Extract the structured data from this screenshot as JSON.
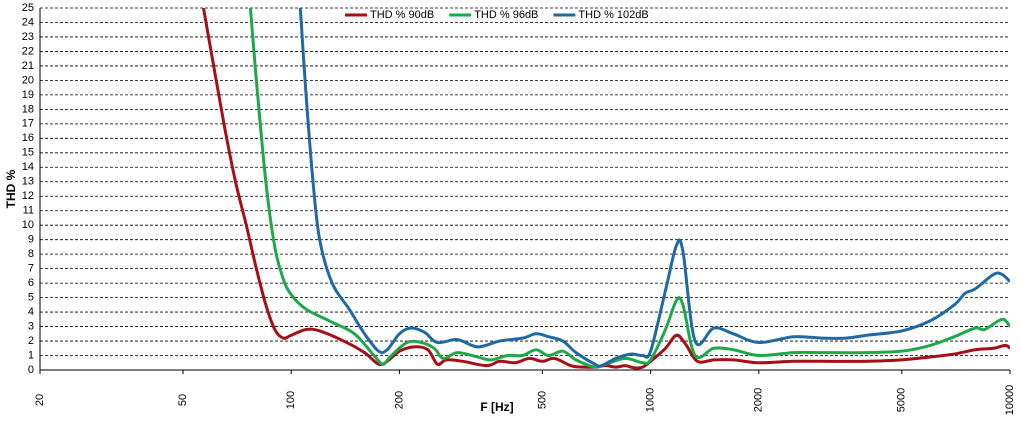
{
  "chart_data": {
    "type": "line",
    "x_label": "F [Hz]",
    "y_label": "THD %",
    "log_x": true,
    "grid": true,
    "xlim": [
      20,
      10000
    ],
    "ylim": [
      0,
      25
    ],
    "xticks": [
      20,
      50,
      100,
      200,
      500,
      1000,
      2000,
      5000,
      10000
    ],
    "yticks": [
      0,
      1,
      2,
      3,
      4,
      5,
      6,
      7,
      8,
      9,
      10,
      11,
      12,
      13,
      14,
      15,
      16,
      17,
      18,
      19,
      20,
      21,
      22,
      23,
      24,
      25
    ],
    "legend": "top",
    "series": [
      {
        "name": "THD % 90dB",
        "color": "#a50f15",
        "x": [
          57,
          65,
          70,
          75,
          80,
          85,
          90,
          95,
          100,
          110,
          120,
          140,
          160,
          175,
          185,
          200,
          220,
          240,
          255,
          270,
          300,
          350,
          380,
          420,
          460,
          500,
          540,
          600,
          650,
          700,
          750,
          800,
          850,
          900,
          950,
          1000,
          1100,
          1180,
          1250,
          1350,
          1500,
          1700,
          2000,
          2500,
          3000,
          4000,
          5000,
          6000,
          7000,
          8000,
          9000,
          9700,
          10000
        ],
        "values": [
          25,
          17,
          13,
          10,
          7,
          4.5,
          2.8,
          2.2,
          2.4,
          2.8,
          2.7,
          2.0,
          1.2,
          0.4,
          0.6,
          1.3,
          1.6,
          1.4,
          0.4,
          0.7,
          0.6,
          0.3,
          0.6,
          0.5,
          0.8,
          0.6,
          0.8,
          0.3,
          0.2,
          0.2,
          0.3,
          0.2,
          0.3,
          0.15,
          0.2,
          0.6,
          1.5,
          2.4,
          1.8,
          0.6,
          0.7,
          0.7,
          0.5,
          0.6,
          0.6,
          0.6,
          0.7,
          0.9,
          1.1,
          1.4,
          1.5,
          1.7,
          1.5
        ]
      },
      {
        "name": "THD % 96dB",
        "color": "#1ea84a",
        "x": [
          77,
          80,
          85,
          90,
          95,
          100,
          110,
          130,
          150,
          170,
          180,
          190,
          210,
          230,
          250,
          265,
          290,
          330,
          360,
          400,
          440,
          480,
          520,
          570,
          620,
          700,
          750,
          850,
          950,
          1000,
          1100,
          1180,
          1230,
          1330,
          1500,
          1700,
          2000,
          2500,
          3000,
          4000,
          5000,
          6000,
          7000,
          8000,
          8500,
          9500,
          10000
        ],
        "values": [
          25,
          20,
          13,
          8.5,
          6.3,
          5.2,
          4.2,
          3.3,
          2.5,
          1.0,
          0.4,
          1.0,
          1.9,
          1.9,
          1.5,
          0.8,
          1.2,
          0.9,
          0.7,
          1.0,
          1.0,
          1.4,
          1.0,
          1.3,
          0.7,
          0.2,
          0.4,
          0.8,
          0.5,
          0.7,
          2.8,
          4.8,
          4.5,
          1.0,
          1.5,
          1.4,
          1.0,
          1.2,
          1.2,
          1.2,
          1.3,
          1.7,
          2.3,
          2.9,
          2.8,
          3.5,
          3.0
        ]
      },
      {
        "name": "THD % 102dB",
        "color": "#1f6aa5",
        "x": [
          106,
          110,
          115,
          120,
          130,
          145,
          160,
          175,
          185,
          200,
          215,
          235,
          255,
          290,
          330,
          380,
          440,
          480,
          520,
          570,
          620,
          700,
          730,
          800,
          880,
          950,
          1000,
          1100,
          1180,
          1230,
          1330,
          1500,
          1700,
          2000,
          2500,
          3000,
          3500,
          4000,
          5000,
          6000,
          7000,
          7500,
          8000,
          9000,
          9500,
          10000
        ],
        "values": [
          25,
          19,
          13,
          9,
          6,
          4.2,
          2.5,
          1.3,
          1.4,
          2.5,
          2.9,
          2.6,
          1.9,
          2.1,
          1.6,
          2.0,
          2.2,
          2.5,
          2.3,
          2.0,
          1.2,
          0.4,
          0.3,
          0.8,
          1.1,
          1.0,
          1.3,
          5.5,
          8.6,
          8.2,
          2.0,
          2.9,
          2.5,
          1.9,
          2.3,
          2.2,
          2.2,
          2.4,
          2.7,
          3.4,
          4.5,
          5.3,
          5.6,
          6.6,
          6.6,
          6.1
        ]
      }
    ]
  }
}
